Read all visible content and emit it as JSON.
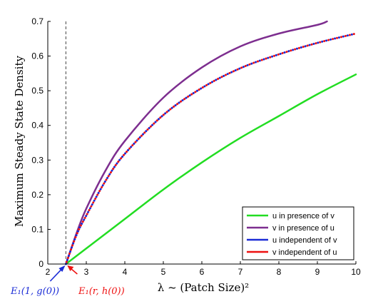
{
  "chart_data": {
    "type": "line",
    "title": "",
    "xlabel": "λ ~ (Patch Size)²",
    "ylabel": "Maximum Steady State Density",
    "xlim": [
      2,
      10
    ],
    "ylim": [
      0,
      0.7
    ],
    "xticks": [
      "2",
      "3",
      "4",
      "5",
      "6",
      "7",
      "8",
      "9",
      "10"
    ],
    "yticks": [
      "0",
      "0.1",
      "0.2",
      "0.3",
      "0.4",
      "0.5",
      "0.6",
      "0.7"
    ],
    "grid": false,
    "legend_position": "bottom-right",
    "vertical_line_x": 2.47,
    "series": [
      {
        "name": "u in presence of v",
        "color": "#22dd22",
        "style": "solid",
        "x": [
          2.47,
          3,
          4,
          5,
          6,
          7,
          8,
          9,
          10
        ],
        "y": [
          0,
          0.045,
          0.13,
          0.215,
          0.293,
          0.364,
          0.427,
          0.49,
          0.547
        ]
      },
      {
        "name": "v in presence of u",
        "color": "#7d2e8f",
        "style": "solid",
        "x": [
          2.47,
          2.75,
          3,
          3.5,
          4,
          5,
          6,
          7,
          8,
          9,
          9.25
        ],
        "y": [
          0,
          0.09,
          0.16,
          0.27,
          0.355,
          0.48,
          0.567,
          0.628,
          0.665,
          0.69,
          0.7
        ]
      },
      {
        "name": "u independent of v",
        "color": "#1a2bd6",
        "style": "dotted",
        "x": [
          2.47,
          2.75,
          3,
          3.5,
          4,
          5,
          6,
          7,
          8,
          9,
          10
        ],
        "y": [
          0,
          0.085,
          0.14,
          0.24,
          0.318,
          0.43,
          0.508,
          0.565,
          0.605,
          0.638,
          0.665
        ]
      },
      {
        "name": "v independent of u",
        "color": "#ee1111",
        "style": "dotted",
        "x": [
          2.47,
          2.75,
          3,
          3.5,
          4,
          5,
          6,
          7,
          8,
          9,
          10
        ],
        "y": [
          0,
          0.085,
          0.14,
          0.24,
          0.318,
          0.43,
          0.508,
          0.565,
          0.605,
          0.638,
          0.665
        ]
      }
    ],
    "annotations": [
      {
        "text": "E₁(1, g(0))",
        "color": "#1a2bd6",
        "arrow_color": "#1a2bd6"
      },
      {
        "text": "E₁(r, h(0))",
        "color": "#ee1111",
        "arrow_color": "#ee1111"
      }
    ]
  }
}
